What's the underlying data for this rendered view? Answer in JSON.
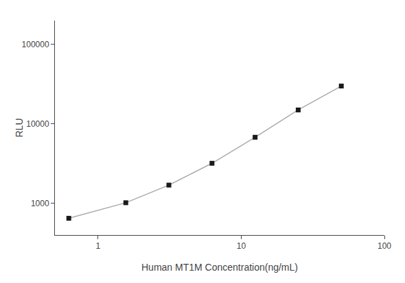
{
  "chart_data": {
    "type": "line",
    "xlabel": "Human MT1M Concentration(ng/mL)",
    "ylabel": "RLU",
    "x": [
      0.625,
      1.563,
      3.125,
      6.25,
      12.5,
      25.0,
      50.0
    ],
    "series": [
      {
        "type": "line",
        "color": "#aaaaaa",
        "values": [
          650,
          1020,
          1700,
          3200,
          6800,
          15000,
          30000
        ]
      },
      {
        "type": "scatter",
        "marker": "square",
        "color": "#1a1a1a",
        "values": [
          650,
          1020,
          1700,
          3200,
          6800,
          15000,
          30000
        ]
      }
    ],
    "log": true,
    "xlim": [
      0.5,
      100
    ],
    "ylim": [
      400,
      200000
    ],
    "xticks": [
      1,
      10,
      100
    ],
    "yticks": [
      1000,
      10000,
      100000
    ],
    "grid": false
  }
}
